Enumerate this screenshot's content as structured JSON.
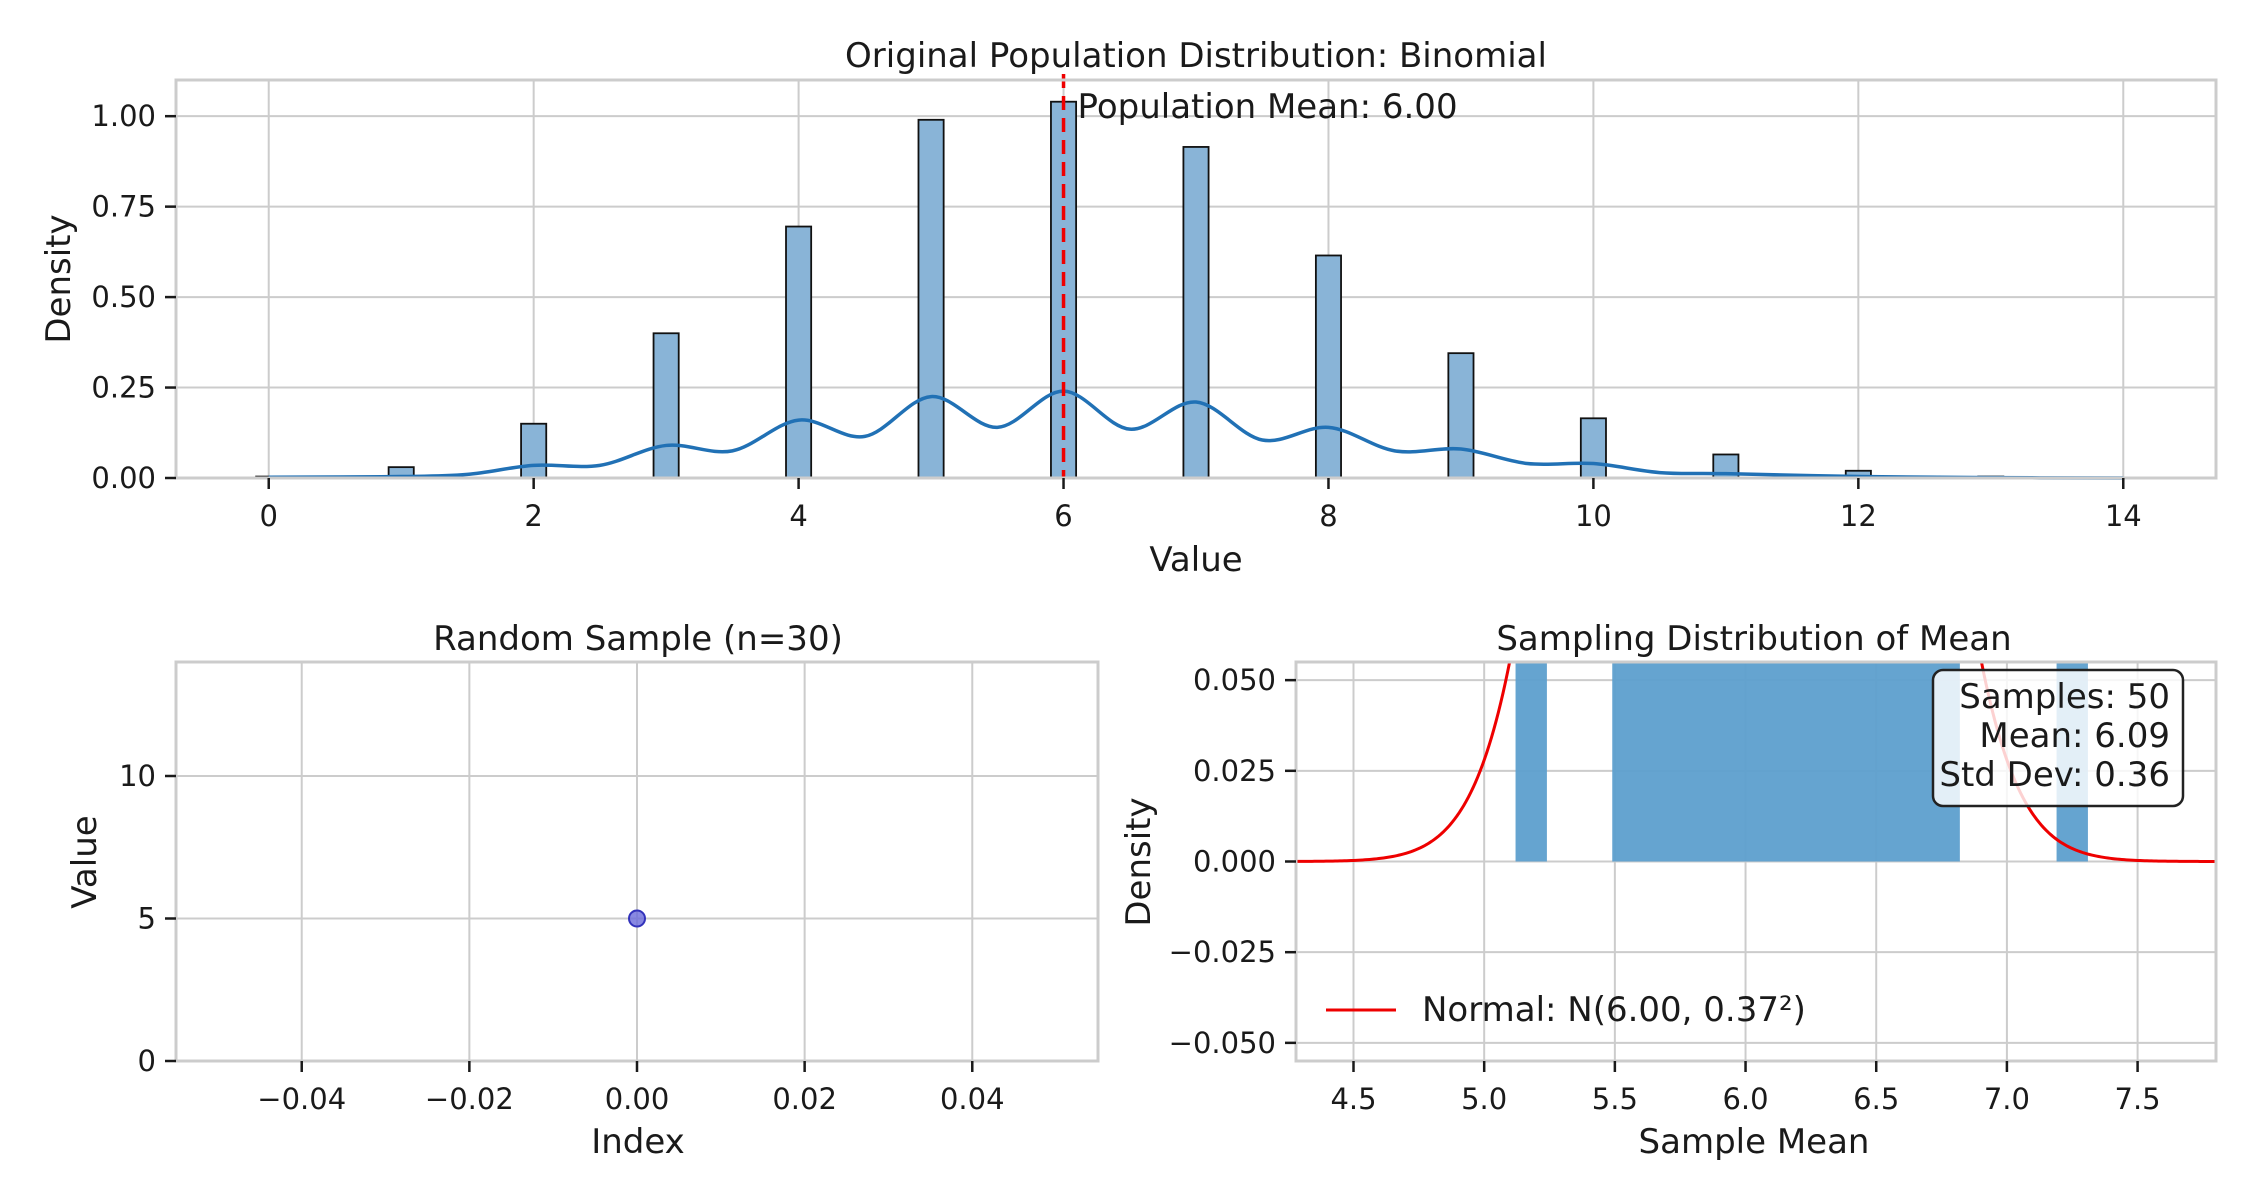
{
  "chart_data": [
    {
      "id": "population",
      "type": "bar",
      "title": "Original Population Distribution: Binomial",
      "xlabel": "Value",
      "ylabel": "Density",
      "xlim": [
        -0.7,
        14.7
      ],
      "ylim": [
        0,
        1.1
      ],
      "xticks": [
        0,
        2,
        4,
        6,
        8,
        10,
        12,
        14
      ],
      "yticks": [
        0.0,
        0.25,
        0.5,
        0.75,
        1.0
      ],
      "ytick_labels": [
        "0.00",
        "0.25",
        "0.50",
        "0.75",
        "1.00"
      ],
      "bar_width": 0.19,
      "bars": {
        "x": [
          0,
          1,
          2,
          3,
          4,
          5,
          6,
          7,
          8,
          9,
          10,
          11,
          12,
          13
        ],
        "values": [
          0.004,
          0.03,
          0.15,
          0.4,
          0.695,
          0.99,
          1.04,
          0.915,
          0.615,
          0.345,
          0.165,
          0.065,
          0.02,
          0.004
        ]
      },
      "kde": {
        "x": [
          0,
          1,
          1.5,
          2,
          2.5,
          3,
          3.5,
          4,
          4.5,
          5,
          5.5,
          6,
          6.5,
          7,
          7.5,
          8,
          8.5,
          9,
          9.5,
          10,
          10.5,
          11,
          12,
          13,
          14
        ],
        "values": [
          0.002,
          0.004,
          0.01,
          0.035,
          0.035,
          0.09,
          0.075,
          0.16,
          0.115,
          0.225,
          0.14,
          0.24,
          0.135,
          0.21,
          0.105,
          0.14,
          0.075,
          0.08,
          0.04,
          0.04,
          0.015,
          0.012,
          0.004,
          0.001,
          0.0
        ]
      },
      "mean_line": {
        "x": 6.0,
        "label": "Population Mean: 6.00"
      },
      "grid": true,
      "colors": {
        "bars": "#89b4d7",
        "bar_edge": "#111111",
        "kde": "#2171b5",
        "mean": "#ee0000"
      }
    },
    {
      "id": "sample",
      "type": "scatter",
      "title": "Random Sample (n=30)",
      "xlabel": "Index",
      "ylabel": "Value",
      "xlim": [
        -0.055,
        0.055
      ],
      "ylim": [
        0,
        14
      ],
      "xticks": [
        -0.04,
        -0.02,
        0.0,
        0.02,
        0.04
      ],
      "xtick_labels": [
        "−0.04",
        "−0.02",
        "0.00",
        "0.02",
        "0.04"
      ],
      "yticks": [
        0,
        5,
        10
      ],
      "ytick_labels": [
        "0",
        "5",
        "10"
      ],
      "points": {
        "x": [
          0.0
        ],
        "y": [
          5
        ]
      },
      "grid": true,
      "colors": {
        "points": "#6a6adb",
        "point_edge": "#3333bb"
      }
    },
    {
      "id": "sampling",
      "type": "bar",
      "title": "Sampling Distribution of Mean",
      "xlabel": "Sample Mean",
      "ylabel": "Density",
      "xlim": [
        4.28,
        7.8
      ],
      "ylim": [
        -0.055,
        0.055
      ],
      "xticks": [
        4.5,
        5.0,
        5.5,
        6.0,
        6.5,
        7.0,
        7.5
      ],
      "xtick_labels": [
        "4.5",
        "5.0",
        "5.5",
        "6.0",
        "6.5",
        "7.0",
        "7.5"
      ],
      "yticks": [
        -0.05,
        -0.025,
        0.0,
        0.025,
        0.05
      ],
      "ytick_labels": [
        "−0.050",
        "−0.025",
        "0.000",
        "0.025",
        "0.050"
      ],
      "bars": [
        {
          "x0": 5.12,
          "x1": 5.24
        },
        {
          "x0": 5.49,
          "x1": 6.82
        },
        {
          "x0": 7.19,
          "x1": 7.31
        }
      ],
      "normal_curve": {
        "mu": 6.0,
        "sigma": 0.37,
        "label": "Normal: N(6.00, 0.37²)"
      },
      "stats_box": [
        "Samples: 50",
        "Mean: 6.09",
        "Std Dev: 0.36"
      ],
      "legend": "lower-left",
      "grid": true,
      "colors": {
        "bars": "#5d9fcd",
        "curve": "#ee0000"
      }
    }
  ]
}
